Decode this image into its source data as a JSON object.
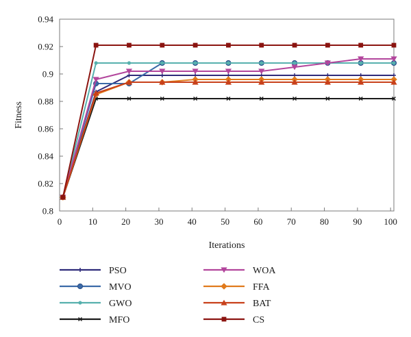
{
  "chart_data": {
    "type": "line",
    "title": "",
    "xlabel": "Iterations",
    "ylabel": "Fitness",
    "xlim": [
      0,
      101
    ],
    "ylim": [
      0.8,
      0.94
    ],
    "xticks": [
      0,
      10,
      20,
      30,
      40,
      50,
      60,
      70,
      80,
      90,
      100
    ],
    "yticks": [
      0.8,
      0.82,
      0.84,
      0.86,
      0.88,
      0.9,
      0.92,
      0.94
    ],
    "ytick_labels": [
      "0.8",
      "0.82",
      "0.84",
      "0.86",
      "0.88",
      "0.9",
      "0.92",
      "0.94"
    ],
    "grid": false,
    "legend_position": "bottom, two columns",
    "x": [
      1,
      11,
      21,
      31,
      41,
      51,
      61,
      71,
      81,
      91,
      101
    ],
    "series": [
      {
        "name": "PSO",
        "color": "#2e2a7a",
        "marker": "plus",
        "values": [
          0.81,
          0.887,
          0.899,
          0.899,
          0.899,
          0.899,
          0.899,
          0.899,
          0.899,
          0.899,
          0.899
        ]
      },
      {
        "name": "MVO",
        "color": "#3b6aa8",
        "marker": "circle",
        "values": [
          0.81,
          0.893,
          0.893,
          0.908,
          0.908,
          0.908,
          0.908,
          0.908,
          0.908,
          0.908,
          0.908
        ]
      },
      {
        "name": "GWO",
        "color": "#56b0ad",
        "marker": "dot",
        "values": [
          0.81,
          0.908,
          0.908,
          0.908,
          0.908,
          0.908,
          0.908,
          0.908,
          0.908,
          0.908,
          0.908
        ]
      },
      {
        "name": "MFO",
        "color": "#1a1a1a",
        "marker": "x",
        "values": [
          0.81,
          0.882,
          0.882,
          0.882,
          0.882,
          0.882,
          0.882,
          0.882,
          0.882,
          0.882,
          0.882
        ]
      },
      {
        "name": "WOA",
        "color": "#b2459c",
        "marker": "triangle-down",
        "values": [
          0.81,
          0.896,
          0.902,
          0.902,
          0.902,
          0.902,
          0.902,
          0.905,
          0.908,
          0.911,
          0.911
        ]
      },
      {
        "name": "FFA",
        "color": "#e07a1c",
        "marker": "diamond",
        "values": [
          0.81,
          0.885,
          0.894,
          0.894,
          0.896,
          0.896,
          0.896,
          0.896,
          0.896,
          0.896,
          0.896
        ]
      },
      {
        "name": "BAT",
        "color": "#c8401a",
        "marker": "triangle-up",
        "values": [
          0.81,
          0.886,
          0.894,
          0.894,
          0.894,
          0.894,
          0.894,
          0.894,
          0.894,
          0.894,
          0.894
        ]
      },
      {
        "name": "CS",
        "color": "#8b1410",
        "marker": "square",
        "values": [
          0.81,
          0.921,
          0.921,
          0.921,
          0.921,
          0.921,
          0.921,
          0.921,
          0.921,
          0.921,
          0.921
        ]
      }
    ]
  }
}
